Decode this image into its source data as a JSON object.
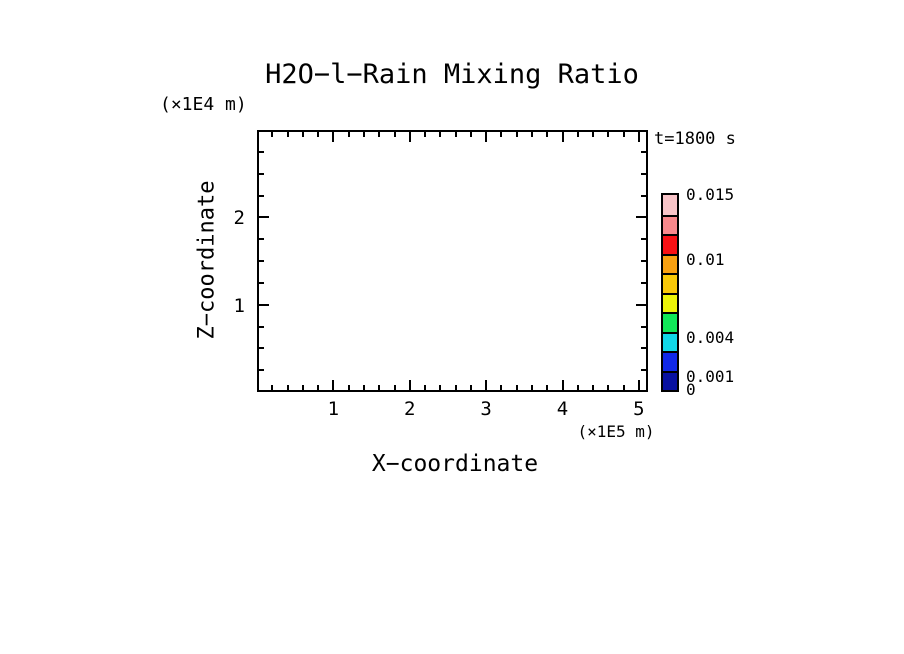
{
  "chart_data": {
    "type": "heatmap",
    "title": "H2O−l−Rain Mixing Ratio",
    "xlabel": "X−coordinate",
    "ylabel": "Z−coordinate",
    "x_unit": "(×1E5 m)",
    "y_unit": "(×1E4 m)",
    "time_annotation": "t=1800 s",
    "xlim": [
      0,
      5.12
    ],
    "ylim": [
      0,
      3
    ],
    "x_major_ticks": [
      1,
      2,
      3,
      4,
      5
    ],
    "x_minor_interval": 0.2,
    "y_major_ticks": [
      1,
      2
    ],
    "y_minor_interval": 0.25,
    "grid": false,
    "field_note": "plot area is entirely blank/white — rain mixing ratio below lowest contour level everywhere at this time",
    "colorbar": {
      "min": 0,
      "max": 0.015,
      "segment_colors_top_to_bottom": [
        "#F8C4C8",
        "#F8888C",
        "#F81014",
        "#F8A010",
        "#F8C808",
        "#ECF408",
        "#10E858",
        "#10D8E8",
        "#1028E8",
        "#0810A0"
      ],
      "labels": [
        {
          "value": 0.015,
          "text": "0.015"
        },
        {
          "value": 0.01,
          "text": "0.01"
        },
        {
          "value": 0.004,
          "text": "0.004"
        },
        {
          "value": 0.001,
          "text": "0.001"
        },
        {
          "value": 0,
          "text": "0"
        }
      ]
    }
  }
}
